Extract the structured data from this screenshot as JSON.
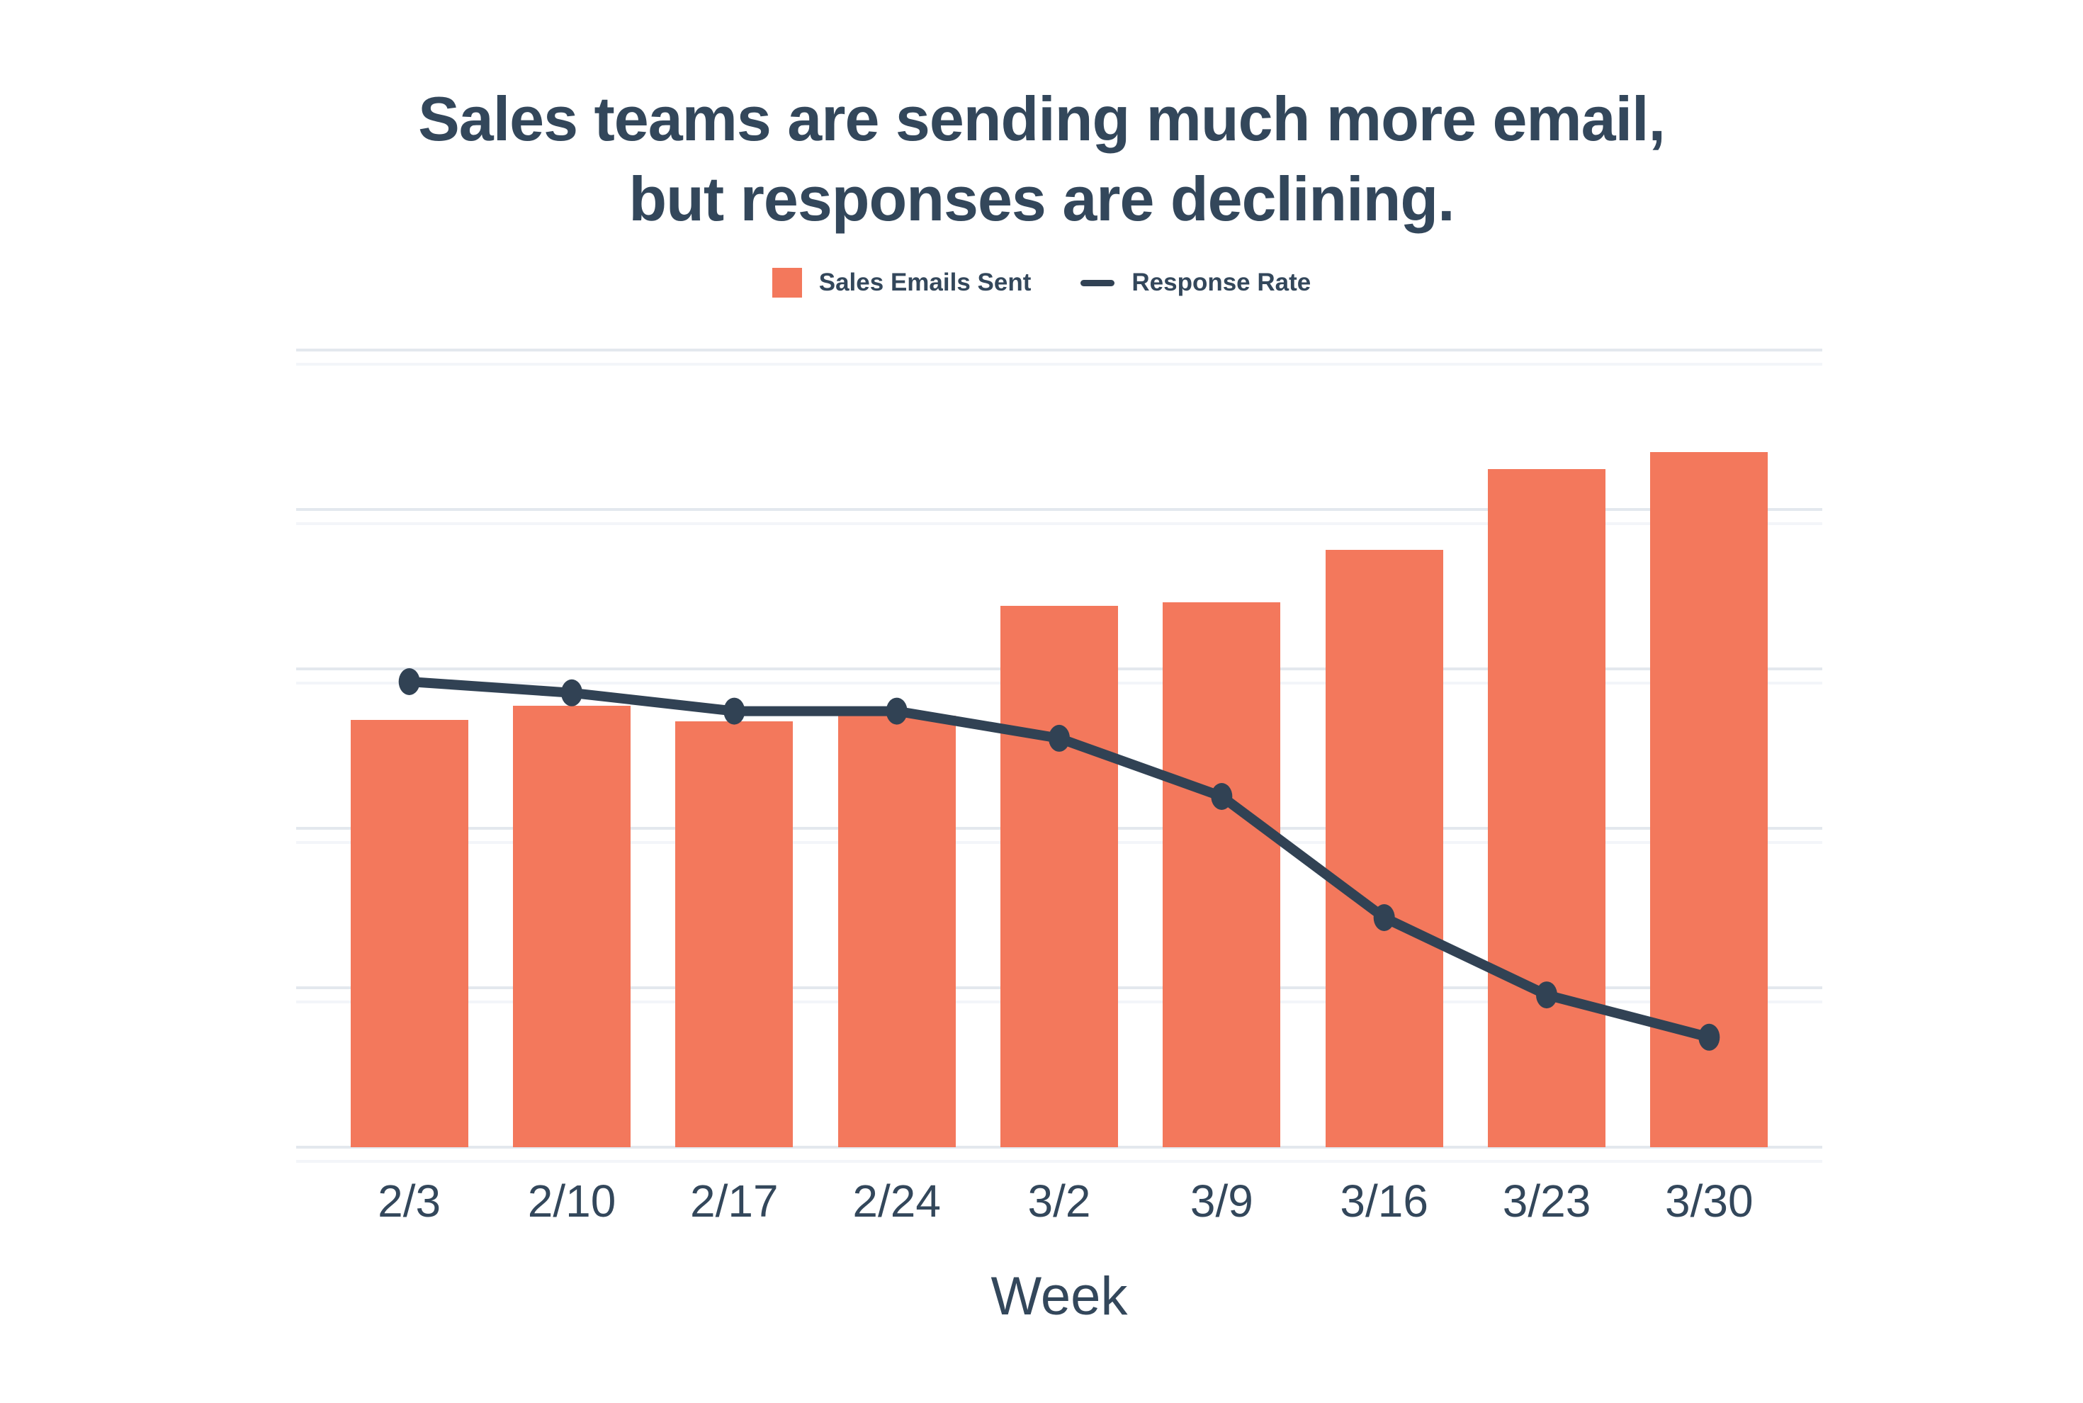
{
  "title": {
    "line1": "Sales teams are sending much more email,",
    "line2": "but responses are declining."
  },
  "legend": {
    "items": [
      {
        "label": "Sales Emails Sent",
        "marker": "swatch",
        "color": "#f3785c"
      },
      {
        "label": "Response Rate",
        "marker": "dash",
        "color": "#314254"
      }
    ]
  },
  "colors": {
    "text": "#33475b",
    "bar": "#f3785c",
    "line": "#314254",
    "gridline": "#e3e8ee",
    "gridline_ghost": "#f3f5f9",
    "background": "#ffffff"
  },
  "chart_data": {
    "type": "bar",
    "subtype": "bar-and-line-combo",
    "title": "Sales teams are sending much more email, but responses are declining.",
    "categories": [
      "2/3",
      "2/10",
      "2/17",
      "2/24",
      "3/2",
      "3/9",
      "3/16",
      "3/23",
      "3/30"
    ],
    "series": [
      {
        "name": "Sales Emails Sent",
        "type": "bar",
        "color": "#f3785c",
        "values": [
          53.6,
          55.4,
          53.4,
          54.1,
          67.9,
          68.4,
          74.9,
          85.1,
          87.2
        ]
      },
      {
        "name": "Response Rate",
        "type": "line",
        "color": "#314254",
        "values": [
          58.4,
          57.0,
          54.7,
          54.7,
          51.3,
          44.0,
          28.8,
          19.1,
          13.8
        ]
      }
    ],
    "xlabel": "Week",
    "ylabel": "",
    "ylim": [
      0,
      100
    ],
    "y_axis_labels_visible": false,
    "y_gridline_count": 6,
    "grid": true,
    "legend_position": "top-center",
    "note_units": "values are percent of plot height; top gridline = 100, no numeric y labels shown"
  }
}
